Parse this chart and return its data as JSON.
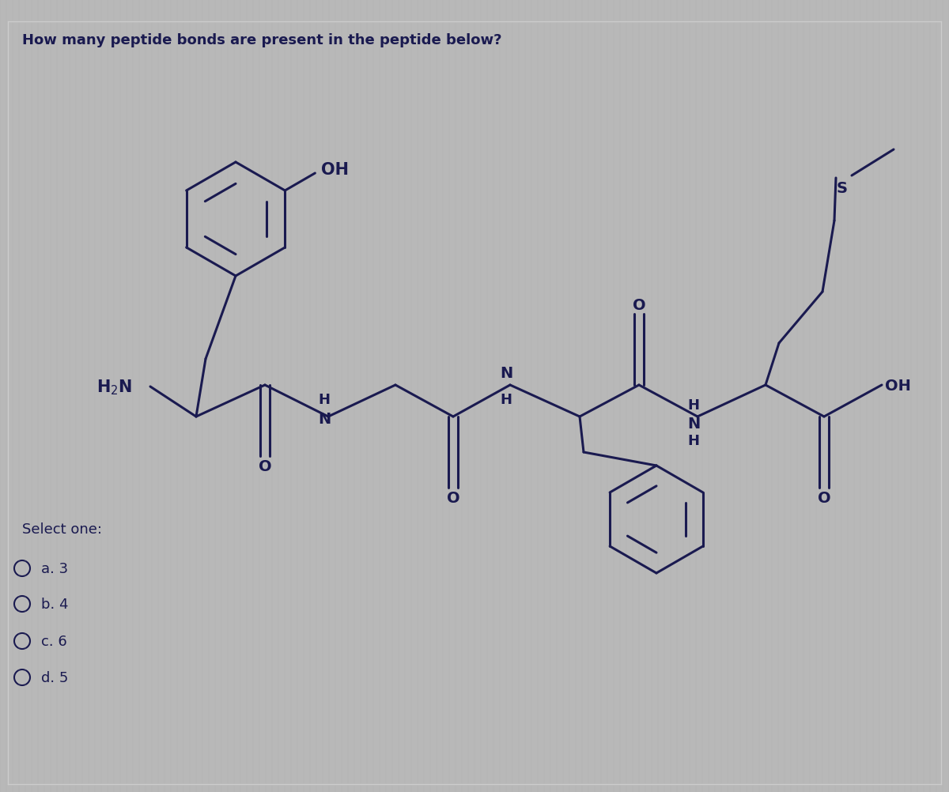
{
  "title": "How many peptide bonds are present in the peptide below?",
  "title_fontsize": 13,
  "background_color": "#b8b8b8",
  "panel_color": "#c0c0c0",
  "text_color": "#1a1a50",
  "line_color": "#1a1a50",
  "select_one_text": "Select one:",
  "options": [
    "a. 3",
    "b. 4",
    "c. 6",
    "d. 5"
  ],
  "fig_width": 12.0,
  "fig_height": 10.03,
  "border_color": "#999999"
}
